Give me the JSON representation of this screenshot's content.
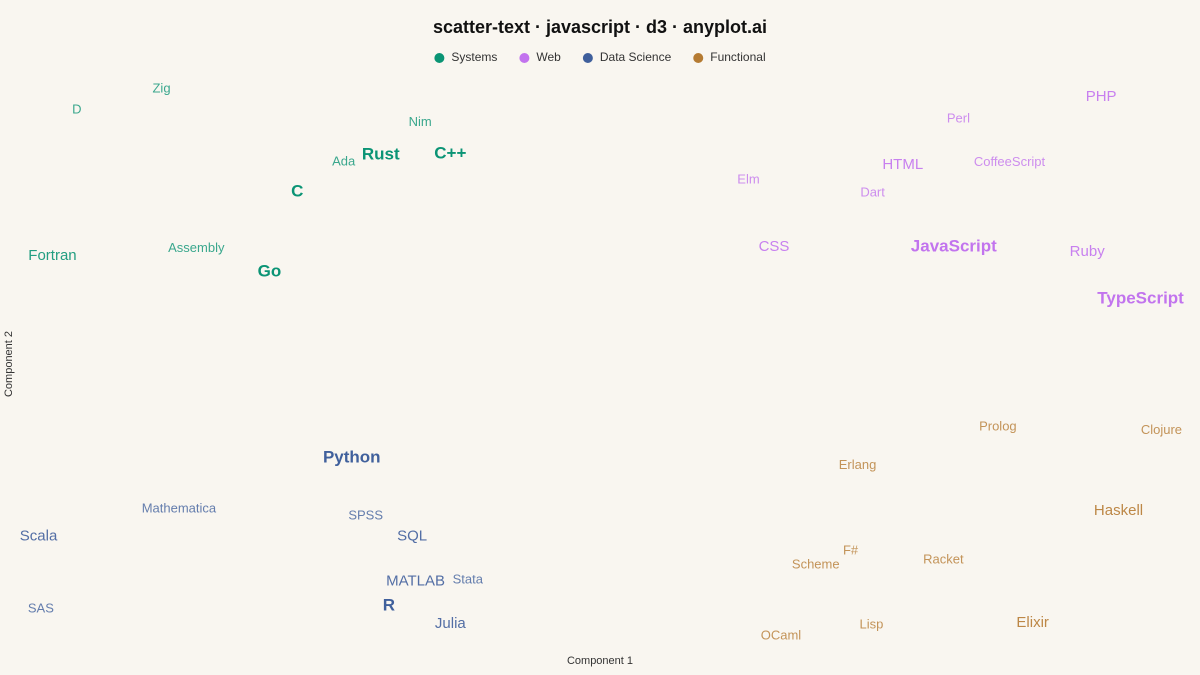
{
  "chart_data": {
    "type": "scatter-text",
    "title": "scatter-text · javascript · d3 · anyplot.ai",
    "xlabel": "Component 1",
    "ylabel": "Component 2",
    "xlim": [
      0,
      100
    ],
    "ylim": [
      0,
      100
    ],
    "series": [
      {
        "name": "Systems",
        "color": "#0a9474",
        "labels": [
          "Zig",
          "D",
          "Nim",
          "Ada",
          "Rust",
          "C++",
          "C",
          "Fortran",
          "Assembly",
          "Go"
        ],
        "x": [
          12.2,
          4.9,
          34.5,
          27.9,
          31.1,
          37.1,
          23.9,
          2.8,
          15.2,
          21.5
        ],
        "values": [
          99.3,
          95.5,
          93.2,
          86.1,
          87.4,
          87.6,
          80.7,
          69.2,
          70.5,
          66.3
        ],
        "sizes": [
          3,
          3,
          3,
          3,
          9,
          9,
          9,
          6,
          3,
          9
        ]
      },
      {
        "name": "Web",
        "color": "#c273ee",
        "labels": [
          "PHP",
          "Perl",
          "HTML",
          "CoffeeScript",
          "Elm",
          "Dart",
          "CSS",
          "JavaScript",
          "Ruby",
          "TypeScript"
        ],
        "x": [
          93.2,
          80.9,
          76.1,
          85.3,
          62.8,
          73.5,
          65.0,
          80.5,
          92.0,
          96.6
        ],
        "values": [
          97.8,
          93.9,
          85.6,
          86.0,
          82.9,
          80.5,
          70.8,
          70.8,
          69.9,
          61.4
        ],
        "sizes": [
          6,
          3,
          6,
          3,
          3,
          3,
          6,
          9,
          6,
          9
        ]
      },
      {
        "name": "Data Science",
        "color": "#3f5f9c",
        "labels": [
          "Python",
          "Mathematica",
          "SPSS",
          "Scala",
          "SQL",
          "MATLAB",
          "Stata",
          "SAS",
          "R",
          "Julia"
        ],
        "x": [
          28.6,
          13.7,
          29.8,
          1.6,
          33.8,
          34.1,
          38.6,
          1.8,
          31.8,
          37.1
        ],
        "values": [
          32.8,
          23.6,
          22.3,
          18.6,
          18.6,
          10.5,
          10.8,
          5.6,
          6.1,
          2.9
        ],
        "sizes": [
          9,
          3,
          3,
          6,
          6,
          6,
          3,
          3,
          9,
          6
        ]
      },
      {
        "name": "Functional",
        "color": "#b57b32",
        "labels": [
          "Prolog",
          "Clojure",
          "Erlang",
          "Haskell",
          "F#",
          "Scheme",
          "Racket",
          "Lisp",
          "OCaml",
          "Elixir"
        ],
        "x": [
          84.3,
          98.4,
          72.2,
          94.7,
          71.6,
          68.6,
          79.6,
          73.4,
          65.6,
          87.3
        ],
        "values": [
          38.4,
          37.7,
          31.4,
          23.2,
          16.0,
          13.5,
          14.4,
          2.7,
          0.7,
          3.1
        ],
        "sizes": [
          3,
          3,
          3,
          6,
          3,
          3,
          3,
          3,
          3,
          6
        ]
      }
    ]
  }
}
